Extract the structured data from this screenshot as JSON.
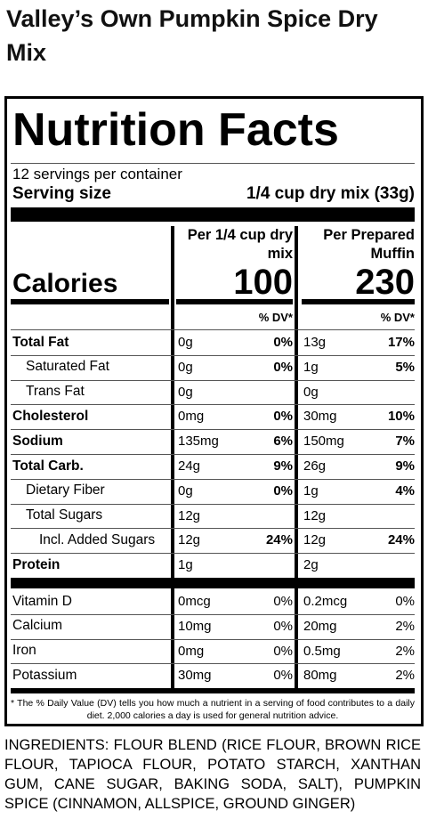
{
  "header": {
    "title": "Valley’s Own Pumpkin Spice Dry Mix"
  },
  "label": {
    "heading": "Nutrition Facts",
    "servings": "12 servings per container",
    "serving_size_label": "Serving size",
    "serving_size": "1/4 cup dry mix (33g)",
    "columns": [
      "Per 1/4 cup dry mix",
      "Per Prepared Muffin"
    ],
    "calories_label": "Calories",
    "calories": [
      100,
      230
    ],
    "dv_header": "% DV*",
    "nutrients": [
      {
        "name": "Total Fat",
        "bold": true,
        "indent": 0,
        "dry": [
          "0g",
          "0%"
        ],
        "prepared": [
          "13g",
          "17%"
        ]
      },
      {
        "name": "Saturated Fat",
        "bold": false,
        "indent": 1,
        "dry": [
          "0g",
          "0%"
        ],
        "prepared": [
          "1g",
          "5%"
        ]
      },
      {
        "name": "Trans Fat",
        "bold": false,
        "indent": 1,
        "dry": [
          "0g"
        ],
        "prepared": [
          "0g"
        ]
      },
      {
        "name": "Cholesterol",
        "bold": true,
        "indent": 0,
        "dry": [
          "0mg",
          "0%"
        ],
        "prepared": [
          "30mg",
          "10%"
        ]
      },
      {
        "name": "Sodium",
        "bold": true,
        "indent": 0,
        "dry": [
          "135mg",
          "6%"
        ],
        "prepared": [
          "150mg",
          "7%"
        ]
      },
      {
        "name": "Total Carb.",
        "bold": true,
        "indent": 0,
        "dry": [
          "24g",
          "9%"
        ],
        "prepared": [
          "26g",
          "9%"
        ]
      },
      {
        "name": "Dietary Fiber",
        "bold": false,
        "indent": 1,
        "dry": [
          "0g",
          "0%"
        ],
        "prepared": [
          "1g",
          "4%"
        ]
      },
      {
        "name": "Total Sugars",
        "bold": false,
        "indent": 1,
        "dry": [
          "12g"
        ],
        "prepared": [
          "12g"
        ]
      },
      {
        "name": "Incl. Added Sugars",
        "bold": false,
        "indent": 2,
        "dry": [
          "12g",
          "24%"
        ],
        "prepared": [
          "12g",
          "24%"
        ]
      },
      {
        "name": "Protein",
        "bold": true,
        "indent": 0,
        "dry": [
          "1g"
        ],
        "prepared": [
          "2g"
        ]
      }
    ],
    "micronutrients": [
      {
        "name": "Vitamin D",
        "dry": [
          "0mcg",
          "0%"
        ],
        "prepared": [
          "0.2mcg",
          "0%"
        ]
      },
      {
        "name": "Calcium",
        "dry": [
          "10mg",
          "0%"
        ],
        "prepared": [
          "20mg",
          "2%"
        ]
      },
      {
        "name": "Iron",
        "dry": [
          "0mg",
          "0%"
        ],
        "prepared": [
          "0.5mg",
          "2%"
        ]
      },
      {
        "name": "Potassium",
        "dry": [
          "30mg",
          "0%"
        ],
        "prepared": [
          "80mg",
          "2%"
        ]
      }
    ],
    "footnote": "* The % Daily Value (DV) tells you how much a nutrient in a serving of food contributes to a daily diet. 2,000 calories a day is used for general nutrition advice."
  },
  "ingredients": "INGREDIENTS: FLOUR BLEND (RICE FLOUR, BROWN RICE FLOUR, TAPIOCA FLOUR, POTATO STARCH, XANTHAN GUM, CANE SUGAR, BAKING SODA, SALT), PUMPKIN SPICE (CINNAMON, ALLSPICE, GROUND GINGER)"
}
